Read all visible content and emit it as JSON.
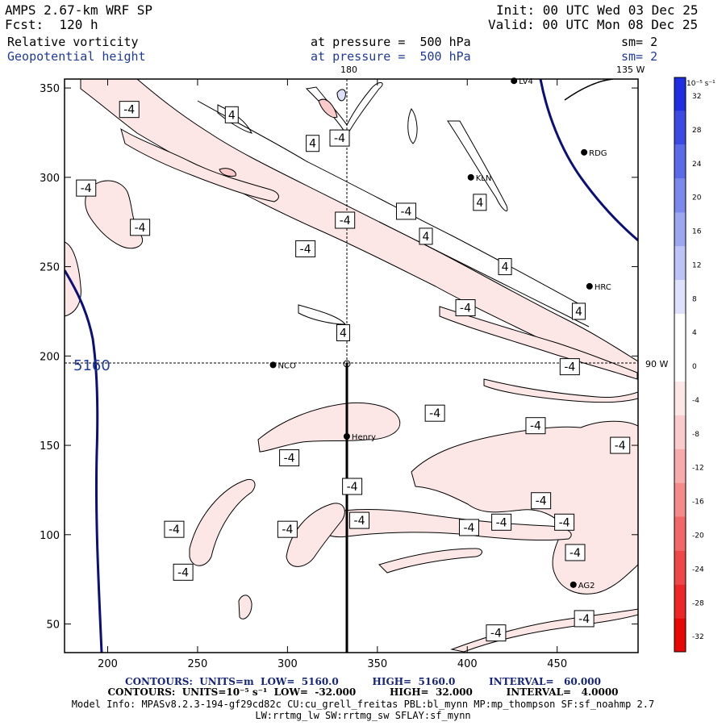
{
  "header": {
    "model": "AMPS 2.67-km WRF SP",
    "forecast": "Fcst:  120 h",
    "init": "Init: 00 UTC Wed 03 Dec 25",
    "valid": "Valid: 00 UTC Mon 08 Dec 25",
    "field1_name": "Relative vorticity",
    "field1_level": "at pressure =  500 hPa",
    "field1_sm": "sm= 2",
    "field2_name": "Geopotential height",
    "field2_level": "at pressure =  500 hPa",
    "field2_sm": "sm= 2"
  },
  "map": {
    "x_ticks": [
      "200",
      "250",
      "300",
      "350",
      "400",
      "450"
    ],
    "y_ticks": [
      "350",
      "300",
      "250",
      "200",
      "150",
      "100",
      "50"
    ],
    "meridian_180": "180",
    "meridian_135w": "135 W",
    "meridian_90w": "90 W",
    "height_contour_label": "5160",
    "stations": [
      {
        "name": "LV4",
        "x": 426,
        "y": 354
      },
      {
        "name": "RDG",
        "x": 465,
        "y": 314
      },
      {
        "name": "KLN",
        "x": 402,
        "y": 300
      },
      {
        "name": "HRC",
        "x": 468,
        "y": 239
      },
      {
        "name": "NCO",
        "x": 292,
        "y": 195
      },
      {
        "name": "Henry",
        "x": 333,
        "y": 155
      },
      {
        "name": "AG2",
        "x": 459,
        "y": 72
      }
    ],
    "vorticity_labels": [
      {
        "text": "-4",
        "x": 212,
        "y": 338
      },
      {
        "text": "4",
        "x": 269,
        "y": 335
      },
      {
        "text": "-4",
        "x": 329,
        "y": 322
      },
      {
        "text": "4",
        "x": 314,
        "y": 319
      },
      {
        "text": "-4",
        "x": 188,
        "y": 294
      },
      {
        "text": "-4",
        "x": 218,
        "y": 272
      },
      {
        "text": "-4",
        "x": 366,
        "y": 281
      },
      {
        "text": "4",
        "x": 407,
        "y": 286
      },
      {
        "text": "-4",
        "x": 332,
        "y": 276
      },
      {
        "text": "4",
        "x": 377,
        "y": 267
      },
      {
        "text": "-4",
        "x": 310,
        "y": 260
      },
      {
        "text": "4",
        "x": 421,
        "y": 250
      },
      {
        "text": "-4",
        "x": 399,
        "y": 227
      },
      {
        "text": "4",
        "x": 462,
        "y": 225
      },
      {
        "text": "4",
        "x": 331,
        "y": 213
      },
      {
        "text": "-4",
        "x": 457,
        "y": 194
      },
      {
        "text": "-4",
        "x": 382,
        "y": 168
      },
      {
        "text": "-4",
        "x": 438,
        "y": 161
      },
      {
        "text": "-4",
        "x": 485,
        "y": 150
      },
      {
        "text": "-4",
        "x": 301,
        "y": 143
      },
      {
        "text": "-4",
        "x": 336,
        "y": 127
      },
      {
        "text": "-4",
        "x": 441,
        "y": 119
      },
      {
        "text": "-4",
        "x": 237,
        "y": 103
      },
      {
        "text": "-4",
        "x": 300,
        "y": 103
      },
      {
        "text": "-4",
        "x": 340,
        "y": 108
      },
      {
        "text": "-4",
        "x": 401,
        "y": 104
      },
      {
        "text": "-4",
        "x": 419,
        "y": 107
      },
      {
        "text": "-4",
        "x": 454,
        "y": 107
      },
      {
        "text": "-4",
        "x": 460,
        "y": 90
      },
      {
        "text": "-4",
        "x": 242,
        "y": 79
      },
      {
        "text": "-4",
        "x": 465,
        "y": 53
      },
      {
        "text": "-4",
        "x": 416,
        "y": 45
      }
    ]
  },
  "colorbar": {
    "unit_label": "10⁻⁵ s⁻¹",
    "levels": [
      {
        "label": "32",
        "color": "#1e2ee0"
      },
      {
        "label": "28",
        "color": "#3a4ae3"
      },
      {
        "label": "24",
        "color": "#5a6ae8"
      },
      {
        "label": "20",
        "color": "#7b88ec"
      },
      {
        "label": "16",
        "color": "#9ca6f1"
      },
      {
        "label": "12",
        "color": "#bcc3f6"
      },
      {
        "label": "8",
        "color": "#dde1fb"
      },
      {
        "label": "4",
        "color": "#ffffff"
      },
      {
        "label": "0",
        "color": "#ffffff"
      },
      {
        "label": "-4",
        "color": "#fde6e6"
      },
      {
        "label": "-8",
        "color": "#fbcaca"
      },
      {
        "label": "-12",
        "color": "#f8abab"
      },
      {
        "label": "-16",
        "color": "#f58a8a"
      },
      {
        "label": "-20",
        "color": "#f26868"
      },
      {
        "label": "-24",
        "color": "#ef4747"
      },
      {
        "label": "-28",
        "color": "#ec2626"
      },
      {
        "label": "-32",
        "color": "#e80707"
      }
    ]
  },
  "footer": {
    "line1": "CONTOURS:  UNITS=m  LOW=  5160.0          HIGH=  5160.0          INTERVAL=   60.000",
    "line2": "CONTOURS:  UNITS=10⁻⁵ s⁻¹  LOW=  -32.000          HIGH=  32.000          INTERVAL=   4.0000",
    "line3": "Model Info: MPASv8.2.3-194-gf29cd82c CU:cu_grell_freitas PBL:bl_mynn MP:mp_thompson SF:sf_noahmp 2.7",
    "line4": "LW:rrtmg_lw SW:rrtmg_sw SFLAY:sf_mynn"
  },
  "colors": {
    "neg_fill": "#fde6e6",
    "height_line": "#0a0f7a",
    "text_blue": "#1f3a9a"
  }
}
